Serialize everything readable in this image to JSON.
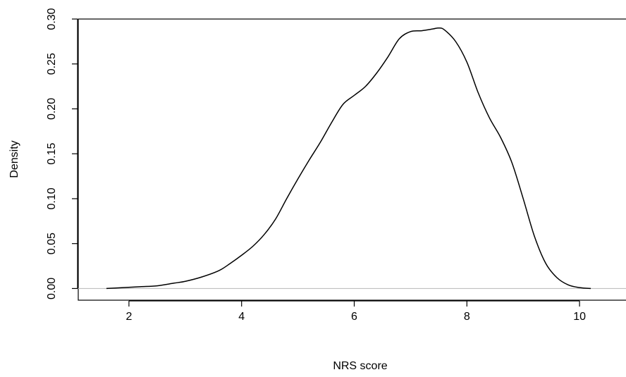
{
  "chart_data": {
    "type": "line",
    "title": "",
    "xlabel": "NRS score",
    "ylabel": "Density",
    "xlim": [
      1.1,
      10.9
    ],
    "ylim": [
      -0.013,
      0.3
    ],
    "x_ticks": [
      2,
      4,
      6,
      8,
      10
    ],
    "x_tick_labels": [
      "2",
      "4",
      "6",
      "8",
      "10"
    ],
    "y_ticks": [
      0.0,
      0.05,
      0.1,
      0.15,
      0.2,
      0.25,
      0.3
    ],
    "y_tick_labels": [
      "0.00",
      "0.05",
      "0.10",
      "0.15",
      "0.20",
      "0.25",
      "0.30"
    ],
    "baseline": 0.0,
    "grid": false,
    "legend": "none",
    "colors": {
      "line": "#000000",
      "baseline": "#c0c0c0",
      "axes": "#000000"
    },
    "series": [
      {
        "x": [
          1.6,
          1.9,
          2.2,
          2.5,
          2.8,
          3.0,
          3.3,
          3.6,
          3.8,
          4.0,
          4.2,
          4.4,
          4.6,
          4.8,
          5.0,
          5.2,
          5.4,
          5.6,
          5.8,
          6.0,
          6.2,
          6.4,
          6.6,
          6.8,
          7.0,
          7.2,
          7.4,
          7.5,
          7.6,
          7.8,
          8.0,
          8.2,
          8.4,
          8.6,
          8.8,
          9.0,
          9.2,
          9.4,
          9.6,
          9.8,
          10.0,
          10.2
        ],
        "y": [
          0.0,
          0.001,
          0.002,
          0.003,
          0.006,
          0.008,
          0.013,
          0.02,
          0.028,
          0.037,
          0.047,
          0.06,
          0.077,
          0.1,
          0.122,
          0.143,
          0.163,
          0.185,
          0.205,
          0.215,
          0.225,
          0.24,
          0.258,
          0.278,
          0.286,
          0.287,
          0.289,
          0.29,
          0.288,
          0.275,
          0.252,
          0.218,
          0.19,
          0.168,
          0.14,
          0.1,
          0.058,
          0.028,
          0.012,
          0.004,
          0.001,
          0.0
        ]
      }
    ]
  }
}
